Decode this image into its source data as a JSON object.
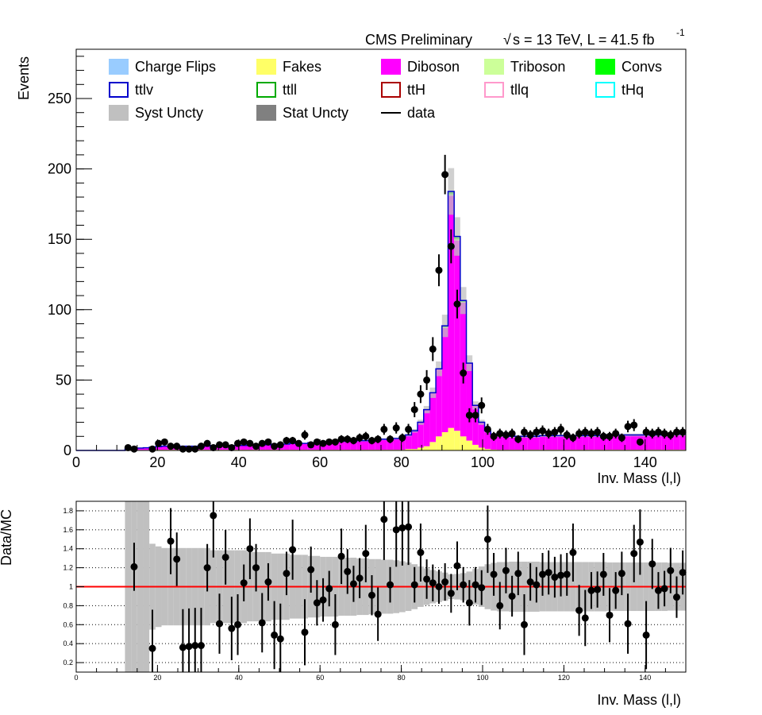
{
  "header": {
    "experiment": "CMS Preliminary",
    "energy_label": "s = 13 TeV, L = 41.5 fb",
    "sqrt_symbol": "√",
    "lumi_exponent": "-1"
  },
  "legend": {
    "placement": "top",
    "entries": [
      {
        "label": "Charge Flips",
        "style": "fill",
        "color": "#99ccff"
      },
      {
        "label": "Fakes",
        "style": "fill",
        "color": "#ffff66"
      },
      {
        "label": "Diboson",
        "style": "fill",
        "color": "#ff00ff"
      },
      {
        "label": "Triboson",
        "style": "fill",
        "color": "#ccff99"
      },
      {
        "label": "Convs",
        "style": "fill",
        "color": "#00ff00"
      },
      {
        "label": "ttlv",
        "style": "box",
        "color": "#0000cc"
      },
      {
        "label": "ttll",
        "style": "box",
        "color": "#00aa00"
      },
      {
        "label": "ttH",
        "style": "box",
        "color": "#aa0000"
      },
      {
        "label": "tllq",
        "style": "box",
        "color": "#ff99cc"
      },
      {
        "label": "tHq",
        "style": "box",
        "color": "#00ffff"
      },
      {
        "label": "Syst Uncty",
        "style": "fill",
        "color": "#c0c0c0"
      },
      {
        "label": "Stat Uncty",
        "style": "fill",
        "color": "#808080"
      },
      {
        "label": "data",
        "style": "line",
        "color": "#000000"
      }
    ]
  },
  "chart_data": [
    {
      "type": "bar",
      "subtype": "stacked-histogram",
      "xlabel": "Inv. Mass (l,l)",
      "ylabel": "Events",
      "xlim": [
        0,
        150
      ],
      "ylim": [
        0,
        285
      ],
      "x_ticks": [
        "0",
        "20",
        "40",
        "60",
        "80",
        "100",
        "120",
        "140"
      ],
      "y_ticks": [
        "0",
        "50",
        "100",
        "150",
        "200",
        "250"
      ],
      "bin_edges_start": 0,
      "bin_width": 1.5,
      "series": [
        {
          "name": "Fakes",
          "color": "#ffff66",
          "values": [
            0,
            0,
            0,
            0,
            0,
            0,
            0,
            0,
            0.3,
            0.3,
            0.4,
            0.4,
            0.5,
            0.5,
            0.5,
            0.5,
            0.5,
            0.5,
            0.5,
            0.5,
            0.5,
            0.5,
            0.5,
            0.5,
            0.5,
            0.5,
            0.5,
            0.5,
            0.5,
            0.5,
            0.5,
            0.5,
            0.5,
            0.5,
            0.5,
            0.5,
            0.5,
            0.5,
            0.5,
            0.5,
            0.5,
            0.5,
            0.5,
            0.5,
            0.5,
            0.5,
            0.5,
            0.5,
            0.5,
            0.5,
            0.5,
            0.5,
            0.5,
            0.5,
            1,
            1,
            2,
            3,
            6,
            10,
            13,
            16,
            14,
            10,
            7,
            4,
            2,
            1,
            0.6,
            0.5,
            0.5,
            0.5,
            0.5,
            0.5,
            0.5,
            0.5,
            0.5,
            0.5,
            0.5,
            0.5,
            0.5,
            0.5,
            0.5,
            0.5,
            0.5,
            0.5,
            0.5,
            0.5,
            0.5,
            0.5,
            0.5,
            0.5,
            0.5,
            0.5,
            0.5,
            0.5,
            0.5,
            0.5,
            0.5,
            0.5
          ]
        },
        {
          "name": "Diboson",
          "color": "#ff00ff",
          "values": [
            0,
            0,
            0,
            0,
            0,
            0,
            0,
            0,
            0.7,
            1.2,
            1.3,
            1.5,
            1.8,
            2.2,
            2.5,
            2.5,
            2.5,
            2.5,
            2.5,
            2.5,
            2.5,
            2.5,
            3,
            3,
            3,
            3,
            3,
            3,
            3.5,
            3.5,
            3.5,
            3.5,
            4,
            4,
            4,
            4.5,
            4.5,
            4.5,
            5,
            5,
            5.5,
            5.5,
            5.5,
            6,
            6,
            6,
            6.5,
            6.5,
            7,
            7,
            7.5,
            7.5,
            8,
            9,
            10,
            13,
            18,
            26,
            35,
            48,
            74,
            165,
            135,
            95,
            55,
            28,
            18,
            13,
            11,
            10,
            10,
            9.5,
            9.5,
            9.5,
            9.5,
            9.5,
            10,
            10,
            10,
            10,
            10,
            10,
            10,
            10,
            10,
            10,
            10,
            10.5,
            10.5,
            10.5,
            10.5,
            10.5,
            10.5,
            10.5,
            10.5,
            10.5,
            10.5,
            11,
            11,
            11
          ]
        },
        {
          "name": "Triboson",
          "color": "#ccff99",
          "values": [
            0,
            0,
            0,
            0,
            0,
            0,
            0,
            0,
            0,
            0,
            0,
            0,
            0,
            0,
            0,
            0,
            0,
            0,
            0,
            0,
            0,
            0,
            0,
            0,
            0,
            0,
            0,
            0,
            0,
            0,
            0,
            0,
            0,
            0,
            0,
            0,
            0,
            0,
            0,
            0,
            0,
            0,
            0,
            0,
            0,
            0,
            0,
            0,
            0,
            0,
            0,
            0,
            0,
            0,
            0,
            0,
            0,
            0,
            0,
            0,
            0.5,
            1,
            1,
            0.5,
            0,
            0,
            0,
            0,
            0,
            0,
            0,
            0,
            0,
            0,
            0,
            0,
            0,
            0,
            0,
            0,
            0,
            0,
            0,
            0,
            0,
            0,
            0,
            0,
            0,
            0,
            0,
            0,
            0,
            0,
            0,
            0,
            0,
            0,
            0,
            0
          ]
        },
        {
          "name": "Convs",
          "color": "#00ff00",
          "values": [
            0,
            0,
            0,
            0,
            0,
            0,
            0,
            0,
            0,
            0,
            0,
            0,
            0,
            0,
            0,
            0,
            0,
            0,
            0,
            0,
            0,
            0,
            0,
            0,
            0,
            0,
            0,
            0,
            0,
            0,
            0,
            0,
            0,
            0,
            0,
            0,
            0,
            0,
            0,
            0,
            0,
            0,
            0,
            0,
            0,
            0,
            0,
            0,
            0,
            0,
            0,
            0,
            0,
            0,
            0,
            0,
            0,
            0,
            0,
            0,
            1,
            2,
            2,
            1,
            0,
            0,
            0,
            0,
            0,
            0,
            0,
            0,
            0,
            0,
            0,
            0,
            0,
            0,
            0,
            0,
            0,
            0,
            0,
            0,
            0,
            0,
            0,
            0,
            0,
            0,
            0,
            0,
            0,
            0,
            0,
            0,
            0,
            0,
            0,
            0
          ]
        },
        {
          "name": "ttlv",
          "style": "line",
          "color": "#0000cc",
          "values": [
            0,
            0,
            0,
            0,
            0,
            0,
            0,
            0,
            0,
            0,
            0,
            0,
            0,
            0,
            0,
            0,
            0,
            0,
            0,
            0,
            0,
            0,
            0,
            0,
            0,
            0,
            0,
            0,
            0,
            0,
            0,
            0,
            0,
            0,
            0,
            0,
            0,
            0,
            0,
            0,
            0,
            0,
            0,
            0,
            0,
            0,
            0,
            0,
            0,
            0,
            0,
            0,
            0,
            0,
            0,
            0,
            0,
            0,
            0,
            0,
            0,
            0,
            0,
            0,
            0,
            0,
            0,
            0,
            0,
            0,
            0,
            0,
            0,
            0,
            0,
            0,
            0,
            0,
            0,
            0,
            0,
            0,
            0,
            0,
            0,
            0,
            0,
            0,
            0,
            0,
            0,
            0,
            0,
            0,
            0,
            0,
            0,
            0,
            0,
            0
          ]
        }
      ],
      "syst_uncertainty_fraction": 0.3,
      "data_x": [
        12.75,
        14.25,
        18.75,
        20.25,
        21.75,
        23.25,
        24.75,
        26.25,
        27.75,
        29.25,
        30.75,
        32.25,
        33.75,
        35.25,
        36.75,
        38.25,
        39.75,
        41.25,
        42.75,
        44.25,
        45.75,
        47.25,
        48.75,
        50.25,
        51.75,
        53.25,
        54.75,
        56.25,
        57.75,
        59.25,
        60.75,
        62.25,
        63.75,
        65.25,
        66.75,
        68.25,
        69.75,
        71.25,
        72.75,
        74.25,
        75.75,
        77.25,
        78.75,
        80.25,
        81.75,
        83.25,
        84.75,
        86.25,
        87.75,
        89.25,
        90.75,
        92.25,
        93.75,
        95.25,
        96.75,
        98.25,
        99.75,
        101.25,
        102.75,
        104.25,
        105.75,
        107.25,
        108.75,
        110.25,
        111.75,
        113.25,
        114.75,
        116.25,
        117.75,
        119.25,
        120.75,
        122.25,
        123.75,
        125.25,
        126.75,
        128.25,
        129.75,
        131.25,
        132.75,
        134.25,
        135.75,
        137.25,
        138.75,
        140.25,
        141.75,
        143.25,
        144.75,
        146.25,
        147.75,
        149.25
      ],
      "data_y": [
        2,
        1,
        1,
        5,
        6,
        3,
        3,
        1,
        1,
        1,
        3,
        5,
        2,
        4,
        4,
        2,
        5,
        6,
        5,
        3,
        5,
        6,
        3,
        4,
        7,
        7,
        5,
        11,
        4,
        6,
        5,
        6,
        6,
        8,
        8,
        7,
        9,
        10,
        7,
        8,
        15,
        8,
        16,
        9,
        15,
        29,
        40,
        50,
        72,
        128,
        196,
        145,
        104,
        55,
        25,
        25,
        32,
        15,
        10,
        12,
        11,
        12,
        8,
        13,
        11,
        13,
        14,
        12,
        13,
        15,
        11,
        9,
        12,
        13,
        12,
        13,
        10,
        10,
        12,
        9,
        17,
        18,
        6,
        13,
        12,
        13,
        12,
        11,
        13,
        13
      ],
      "annotations": []
    },
    {
      "type": "scatter",
      "subtype": "ratio",
      "xlabel": "Inv. Mass (l,l)",
      "ylabel": "Data/MC",
      "xlim": [
        0,
        150
      ],
      "ylim": [
        0.1,
        1.9
      ],
      "x_ticks": [
        "0",
        "20",
        "40",
        "60",
        "80",
        "100",
        "120",
        "140"
      ],
      "y_ticks": [
        "0.2",
        "0.4",
        "0.6",
        "0.8",
        "1",
        "1.2",
        "1.4",
        "1.6",
        "1.8"
      ],
      "reference_line": 1,
      "grid": true,
      "points_x": [
        14.25,
        18.75,
        23.25,
        24.75,
        26.25,
        27.75,
        29.25,
        30.75,
        32.25,
        33.75,
        35.25,
        36.75,
        38.25,
        39.75,
        41.25,
        42.75,
        44.25,
        45.75,
        47.25,
        48.75,
        50.25,
        51.75,
        53.25,
        56.25,
        57.75,
        59.25,
        60.75,
        62.25,
        63.75,
        65.25,
        66.75,
        68.25,
        69.75,
        71.25,
        72.75,
        74.25,
        75.75,
        77.25,
        78.75,
        80.25,
        81.75,
        83.25,
        84.75,
        86.25,
        87.75,
        89.25,
        90.75,
        92.25,
        93.75,
        95.25,
        96.75,
        98.25,
        99.75,
        101.25,
        102.75,
        104.25,
        105.75,
        107.25,
        108.75,
        110.25,
        111.75,
        113.25,
        114.75,
        116.25,
        117.75,
        119.25,
        120.75,
        122.25,
        123.75,
        125.25,
        126.75,
        128.25,
        129.75,
        131.25,
        132.75,
        134.25,
        135.75,
        137.25,
        138.75,
        140.25,
        141.75,
        143.25,
        144.75,
        146.25,
        147.75,
        149.25
      ],
      "points_y": [
        1.21,
        0.35,
        1.48,
        1.29,
        0.36,
        0.37,
        0.38,
        0.38,
        1.2,
        1.75,
        0.61,
        1.31,
        0.56,
        0.6,
        1.04,
        1.4,
        1.2,
        0.62,
        1.05,
        0.49,
        0.45,
        1.14,
        1.39,
        0.52,
        1.18,
        0.83,
        0.86,
        0.98,
        0.6,
        1.32,
        1.16,
        1.03,
        1.09,
        1.35,
        0.91,
        0.71,
        1.71,
        1.02,
        1.6,
        1.62,
        1.63,
        1.02,
        1.36,
        1.08,
        1.04,
        1.0,
        1.05,
        0.93,
        1.22,
        1.02,
        0.83,
        1.02,
        0.99,
        1.5,
        1.13,
        0.8,
        1.17,
        0.9,
        1.14,
        0.6,
        1.05,
        1.02,
        1.13,
        1.15,
        1.1,
        1.12,
        1.13,
        1.36,
        0.75,
        0.67,
        0.96,
        0.97,
        1.13,
        0.7,
        0.96,
        1.14,
        0.61,
        1.35,
        1.47,
        0.49,
        1.24,
        0.96,
        0.98,
        1.17,
        0.89,
        1.15
      ]
    }
  ]
}
